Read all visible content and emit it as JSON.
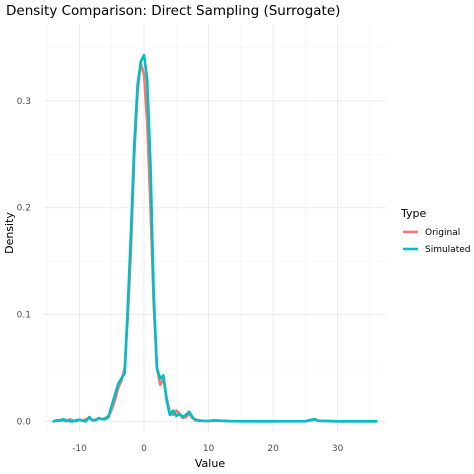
{
  "chart_data": {
    "type": "line",
    "title": "Density Comparison: Direct Sampling (Surrogate)",
    "xlabel": "Value",
    "ylabel": "Density",
    "xlim": [
      -15.5,
      37.5
    ],
    "ylim": [
      -0.01,
      0.372
    ],
    "x_ticks": [
      -10,
      0,
      10,
      20,
      30
    ],
    "x_tick_labels": [
      "-10",
      "0",
      "10",
      "20",
      "30"
    ],
    "y_ticks": [
      0.0,
      0.1,
      0.2,
      0.3
    ],
    "y_tick_labels": [
      "0.0",
      "0.1",
      "0.2",
      "0.3"
    ],
    "grid": true,
    "legend": {
      "title": "Type",
      "position": "right"
    },
    "series": [
      {
        "name": "Original",
        "color": "#F8766D",
        "x": [
          -14,
          -13,
          -12,
          -11.5,
          -11,
          -10.5,
          -10,
          -9.5,
          -9,
          -8.5,
          -8,
          -7.5,
          -7,
          -6.5,
          -6,
          -5.5,
          -5,
          -4.5,
          -4,
          -3.5,
          -3,
          -2.5,
          -2,
          -1.5,
          -1,
          -0.5,
          0,
          0.5,
          1,
          1.5,
          2,
          2.5,
          3,
          3.5,
          4,
          4.5,
          5,
          5.5,
          6,
          6.5,
          7,
          7.5,
          8,
          9,
          10,
          11,
          12,
          13,
          15,
          20,
          25,
          26,
          26.5,
          27,
          30,
          35,
          36
        ],
        "y": [
          0.0,
          0.0015,
          0.0,
          0.002,
          0.001,
          0.0,
          0.0015,
          0.0005,
          0.002,
          0.003,
          0.001,
          0.0015,
          0.003,
          0.002,
          0.003,
          0.005,
          0.011,
          0.02,
          0.031,
          0.038,
          0.05,
          0.1,
          0.165,
          0.25,
          0.31,
          0.335,
          0.325,
          0.28,
          0.2,
          0.11,
          0.05,
          0.034,
          0.04,
          0.022,
          0.008,
          0.006,
          0.01,
          0.007,
          0.003,
          0.004,
          0.007,
          0.003,
          0.0015,
          0.0005,
          0.0002,
          0.001,
          0.0005,
          0.0002,
          0.0001,
          0.0,
          0.0001,
          0.001,
          0.0015,
          0.0005,
          0.0,
          0.0,
          0.0
        ]
      },
      {
        "name": "Simulated",
        "color": "#00BFC4",
        "x": [
          -14,
          -13.5,
          -13,
          -12.5,
          -12,
          -11.5,
          -11,
          -10.5,
          -10,
          -9.5,
          -9,
          -8.5,
          -8,
          -7.5,
          -7,
          -6.5,
          -6,
          -5.5,
          -5,
          -4.5,
          -4,
          -3.5,
          -3,
          -2.5,
          -2,
          -1.5,
          -1,
          -0.5,
          0,
          0.5,
          1,
          1.5,
          2,
          2.5,
          3,
          3.5,
          4,
          4.5,
          5,
          5.5,
          6,
          6.5,
          7,
          7.5,
          8,
          9,
          10,
          11,
          12,
          13,
          15,
          20,
          25,
          26,
          26.5,
          27,
          30,
          35,
          36
        ],
        "y": [
          0.0,
          0.001,
          0.0005,
          0.002,
          0.001,
          0.0,
          0.0,
          0.001,
          0.0015,
          0.0005,
          0.0,
          0.004,
          0.001,
          0.001,
          0.003,
          0.002,
          0.002,
          0.004,
          0.015,
          0.025,
          0.035,
          0.04,
          0.045,
          0.11,
          0.18,
          0.26,
          0.315,
          0.337,
          0.343,
          0.32,
          0.24,
          0.12,
          0.05,
          0.04,
          0.043,
          0.02,
          0.006,
          0.01,
          0.005,
          0.007,
          0.004,
          0.006,
          0.009,
          0.004,
          0.001,
          0.0005,
          0.0003,
          0.001,
          0.0005,
          0.0002,
          0.0,
          0.0,
          0.0001,
          0.0015,
          0.002,
          0.0005,
          0.0,
          0.0,
          0.0
        ]
      }
    ]
  }
}
